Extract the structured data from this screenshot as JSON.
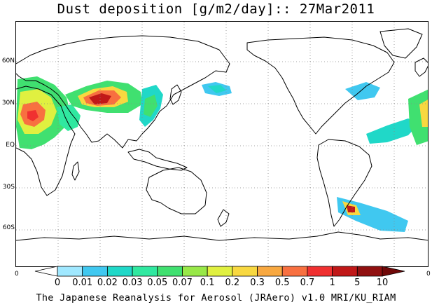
{
  "title": "Dust deposition [g/m2/day]:: 27Mar2011",
  "footer": "The Japanese Reanalysis for Aerosol (JRAero) v1.0 MRI/KU_RIAM",
  "latitude_labels": [
    "60N",
    "30N",
    "EQ",
    "30S",
    "60S"
  ],
  "colorbar": {
    "left_edge_label": "0",
    "right_edge_label": "0",
    "tick_labels": [
      "0",
      "0.01",
      "0.02",
      "0.03",
      "0.05",
      "0.07",
      "0.1",
      "0.2",
      "0.3",
      "0.5",
      "0.7",
      "1",
      "5",
      "10"
    ],
    "colors": [
      "#ffffff",
      "#a0e8ff",
      "#40c8f0",
      "#20d8c8",
      "#30e8a0",
      "#40e070",
      "#98e848",
      "#e0f040",
      "#f8d840",
      "#f8a840",
      "#f87040",
      "#f03030",
      "#c01818",
      "#901010",
      "#700808"
    ]
  }
}
